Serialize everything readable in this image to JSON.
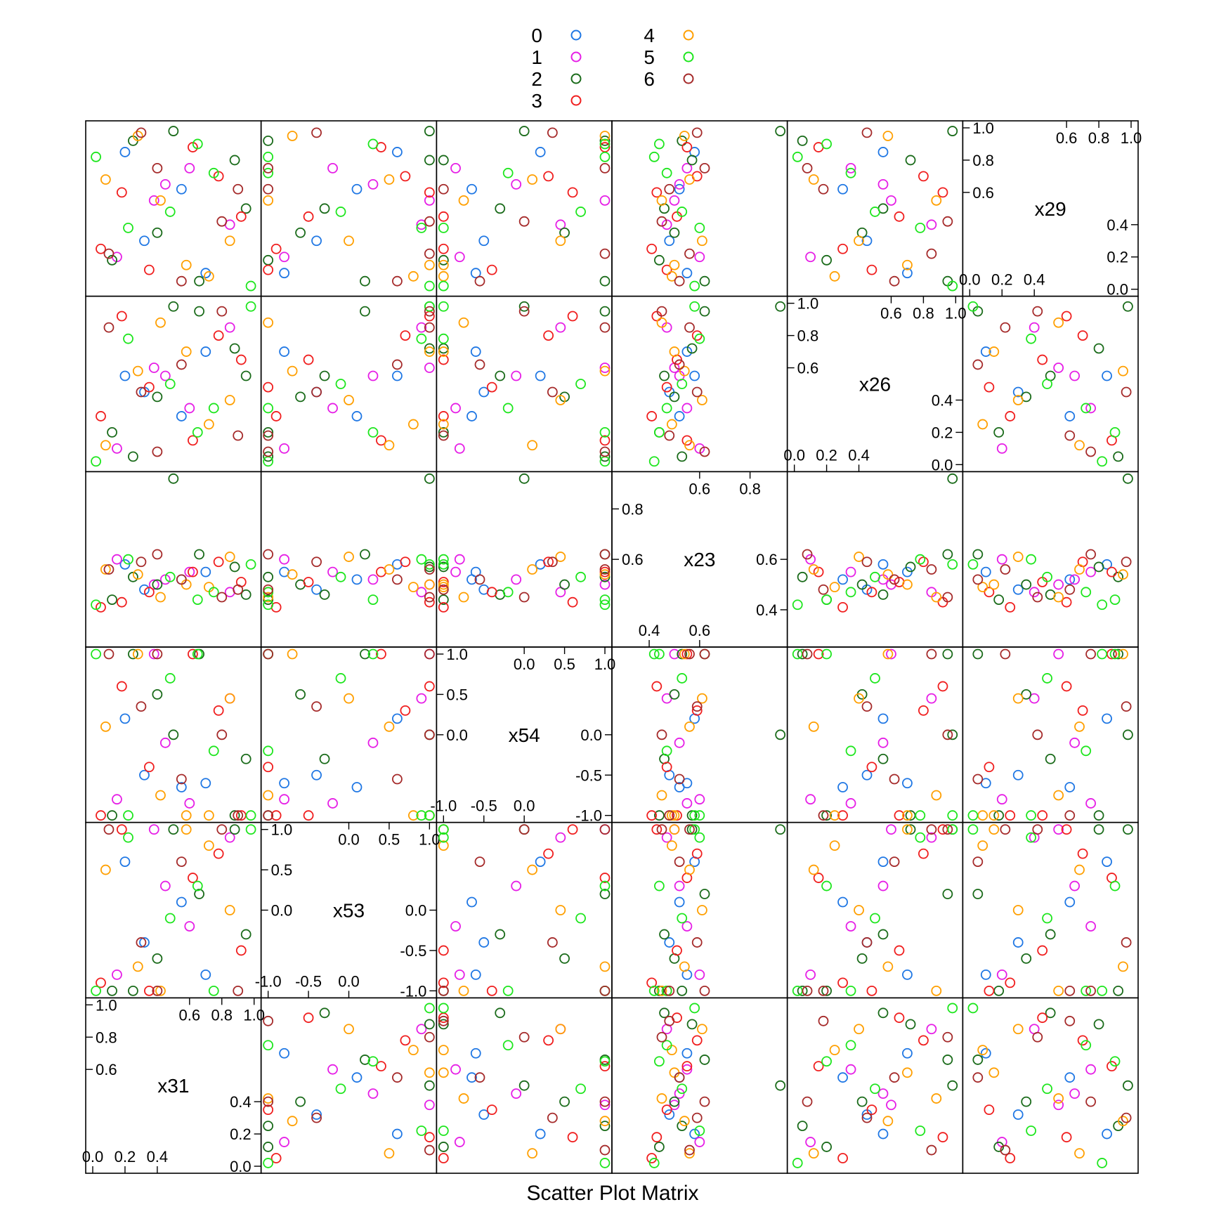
{
  "chart_data": {
    "type": "scatter",
    "subtype": "scatter-plot-matrix",
    "title": "",
    "xlabel": "Scatter Plot Matrix",
    "ylabel": "",
    "grid": false,
    "legend_placement": "top-center",
    "legend": {
      "columns": [
        [
          "0",
          "1",
          "2",
          "3"
        ],
        [
          "4",
          "5",
          "6"
        ]
      ],
      "entries": [
        {
          "label": "0",
          "color": "#1f77e4"
        },
        {
          "label": "1",
          "color": "#e61ee6"
        },
        {
          "label": "2",
          "color": "#1a6b1a"
        },
        {
          "label": "3",
          "color": "#f01e1e"
        },
        {
          "label": "4",
          "color": "#ff9f00"
        },
        {
          "label": "5",
          "color": "#1ee61e"
        },
        {
          "label": "6",
          "color": "#a52a2a"
        }
      ]
    },
    "variables": [
      {
        "name": "x31",
        "range": [
          0.0,
          1.0
        ],
        "lower_ticks": [
          "0.0",
          "0.2",
          "0.4"
        ],
        "upper_ticks": [
          "0.6",
          "0.8",
          "1.0"
        ],
        "lower_values": [
          0.0,
          0.2,
          0.4
        ],
        "upper_values": [
          0.6,
          0.8,
          1.0
        ]
      },
      {
        "name": "x53",
        "range": [
          -1.0,
          1.0
        ],
        "lower_ticks": [
          "-1.0",
          "-0.5",
          "0.0"
        ],
        "upper_ticks": [
          "0.0",
          "0.5",
          "1.0"
        ],
        "lower_values": [
          -1.0,
          -0.5,
          0.0
        ],
        "upper_values": [
          0.0,
          0.5,
          1.0
        ]
      },
      {
        "name": "x54",
        "range": [
          -1.0,
          1.0
        ],
        "lower_ticks": [
          "-1.0",
          "-0.5",
          "0.0"
        ],
        "upper_ticks": [
          "0.0",
          "0.5",
          "1.0"
        ],
        "lower_values": [
          -1.0,
          -0.5,
          0.0
        ],
        "upper_values": [
          0.0,
          0.5,
          1.0
        ]
      },
      {
        "name": "x23",
        "range": [
          0.28,
          0.92
        ],
        "lower_ticks": [
          "0.4",
          "0.6"
        ],
        "upper_ticks": [
          "0.6",
          "0.8"
        ],
        "lower_values": [
          0.4,
          0.6
        ],
        "upper_values": [
          0.6,
          0.8
        ]
      },
      {
        "name": "x26",
        "range": [
          0.0,
          1.0
        ],
        "lower_ticks": [
          "0.0",
          "0.2",
          "0.4"
        ],
        "upper_ticks": [
          "0.6",
          "0.8",
          "1.0"
        ],
        "lower_values": [
          0.0,
          0.2,
          0.4
        ],
        "upper_values": [
          0.6,
          0.8,
          1.0
        ]
      },
      {
        "name": "x29",
        "range": [
          0.0,
          1.0
        ],
        "lower_ticks": [
          "0.0",
          "0.2",
          "0.4"
        ],
        "upper_ticks": [
          "0.6",
          "0.8",
          "1.0"
        ],
        "lower_values": [
          0.0,
          0.2,
          0.4
        ],
        "upper_values": [
          0.6,
          0.8,
          1.0
        ]
      }
    ],
    "series": [
      {
        "label": "0",
        "points": [
          {
            "x31": 0.32,
            "x53": -0.4,
            "x54": -0.5,
            "x23": 0.48,
            "x26": 0.45,
            "x29": 0.3
          },
          {
            "x31": 0.55,
            "x53": 0.1,
            "x54": -0.65,
            "x23": 0.52,
            "x26": 0.3,
            "x29": 0.62
          },
          {
            "x31": 0.7,
            "x53": -0.8,
            "x54": -0.6,
            "x23": 0.55,
            "x26": 0.7,
            "x29": 0.1
          },
          {
            "x31": 0.2,
            "x53": 0.6,
            "x54": 0.2,
            "x23": 0.58,
            "x26": 0.55,
            "x29": 0.85
          }
        ]
      },
      {
        "label": "1",
        "points": [
          {
            "x31": 0.45,
            "x53": 0.3,
            "x54": -0.1,
            "x23": 0.52,
            "x26": 0.55,
            "x29": 0.65
          },
          {
            "x31": 0.15,
            "x53": -0.8,
            "x54": -0.8,
            "x23": 0.6,
            "x26": 0.1,
            "x29": 0.2
          },
          {
            "x31": 0.85,
            "x53": 0.9,
            "x54": 0.45,
            "x23": 0.47,
            "x26": 0.85,
            "x29": 0.4
          },
          {
            "x31": 0.6,
            "x53": -0.2,
            "x54": -0.85,
            "x23": 0.55,
            "x26": 0.35,
            "x29": 0.75
          },
          {
            "x31": 0.38,
            "x53": 1.0,
            "x54": 1.0,
            "x23": 0.5,
            "x26": 0.6,
            "x29": 0.55
          }
        ]
      },
      {
        "label": "2",
        "points": [
          {
            "x31": 0.12,
            "x53": -1.0,
            "x54": -1.0,
            "x23": 0.44,
            "x26": 0.2,
            "x29": 0.18
          },
          {
            "x31": 0.88,
            "x53": 1.0,
            "x54": -1.0,
            "x23": 0.57,
            "x26": 0.72,
            "x29": 0.8
          },
          {
            "x31": 0.4,
            "x53": -0.6,
            "x54": 0.5,
            "x23": 0.5,
            "x26": 0.42,
            "x29": 0.35
          },
          {
            "x31": 0.66,
            "x53": 0.2,
            "x54": 1.0,
            "x23": 0.62,
            "x26": 0.95,
            "x29": 0.05
          },
          {
            "x31": 0.25,
            "x53": -1.0,
            "x54": 1.0,
            "x23": 0.53,
            "x26": 0.05,
            "x29": 0.92
          },
          {
            "x31": 0.95,
            "x53": -0.3,
            "x54": -0.3,
            "x23": 0.46,
            "x26": 0.55,
            "x29": 0.5
          },
          {
            "x31": 0.5,
            "x53": 1.0,
            "x54": 0.0,
            "x23": 0.92,
            "x26": 0.98,
            "x29": 0.98
          }
        ]
      },
      {
        "label": "3",
        "points": [
          {
            "x31": 0.05,
            "x53": -0.9,
            "x54": -1.0,
            "x23": 0.41,
            "x26": 0.3,
            "x29": 0.25
          },
          {
            "x31": 0.78,
            "x53": 0.7,
            "x54": 0.3,
            "x23": 0.59,
            "x26": 0.8,
            "x29": 0.7
          },
          {
            "x31": 0.35,
            "x53": -1.0,
            "x54": -0.4,
            "x23": 0.47,
            "x26": 0.48,
            "x29": 0.12
          },
          {
            "x31": 0.62,
            "x53": 0.4,
            "x54": 1.0,
            "x23": 0.55,
            "x26": 0.15,
            "x29": 0.88
          },
          {
            "x31": 0.92,
            "x53": -0.5,
            "x54": -1.0,
            "x23": 0.51,
            "x26": 0.65,
            "x29": 0.45
          },
          {
            "x31": 0.18,
            "x53": 1.0,
            "x54": 0.6,
            "x23": 0.43,
            "x26": 0.92,
            "x29": 0.6
          }
        ]
      },
      {
        "label": "4",
        "points": [
          {
            "x31": 0.72,
            "x53": 0.8,
            "x54": -1.0,
            "x23": 0.49,
            "x26": 0.25,
            "x29": 0.08
          },
          {
            "x31": 0.28,
            "x53": -0.7,
            "x54": 1.0,
            "x23": 0.54,
            "x26": 0.58,
            "x29": 0.95
          },
          {
            "x31": 0.85,
            "x53": 0.0,
            "x54": 0.45,
            "x23": 0.61,
            "x26": 0.4,
            "x29": 0.3
          },
          {
            "x31": 0.42,
            "x53": -1.0,
            "x54": -0.75,
            "x23": 0.45,
            "x26": 0.88,
            "x29": 0.55
          },
          {
            "x31": 0.08,
            "x53": 0.5,
            "x54": 0.1,
            "x23": 0.56,
            "x26": 0.12,
            "x29": 0.68
          },
          {
            "x31": 0.58,
            "x53": 1.0,
            "x54": -1.0,
            "x23": 0.5,
            "x26": 0.7,
            "x29": 0.15
          }
        ]
      },
      {
        "label": "5",
        "points": [
          {
            "x31": 0.02,
            "x53": -1.0,
            "x54": 1.0,
            "x23": 0.42,
            "x26": 0.02,
            "x29": 0.82
          },
          {
            "x31": 0.98,
            "x53": 1.0,
            "x54": -1.0,
            "x23": 0.58,
            "x26": 0.98,
            "x29": 0.02
          },
          {
            "x31": 0.48,
            "x53": -0.1,
            "x54": 0.7,
            "x23": 0.53,
            "x26": 0.5,
            "x29": 0.48
          },
          {
            "x31": 0.75,
            "x53": -1.0,
            "x54": -0.2,
            "x23": 0.47,
            "x26": 0.35,
            "x29": 0.72
          },
          {
            "x31": 0.22,
            "x53": 0.9,
            "x54": -1.0,
            "x23": 0.6,
            "x26": 0.78,
            "x29": 0.38
          },
          {
            "x31": 0.65,
            "x53": 0.3,
            "x54": 1.0,
            "x23": 0.44,
            "x26": 0.2,
            "x29": 0.9
          }
        ]
      },
      {
        "label": "6",
        "points": [
          {
            "x31": 0.1,
            "x53": 1.0,
            "x54": 1.0,
            "x23": 0.56,
            "x26": 0.85,
            "x29": 0.22
          },
          {
            "x31": 0.9,
            "x53": -1.0,
            "x54": -1.0,
            "x23": 0.48,
            "x26": 0.18,
            "x29": 0.62
          },
          {
            "x31": 0.55,
            "x53": 0.6,
            "x54": -0.55,
            "x23": 0.52,
            "x26": 0.62,
            "x29": 0.05
          },
          {
            "x31": 0.3,
            "x53": -0.4,
            "x54": 0.35,
            "x23": 0.59,
            "x26": 0.45,
            "x29": 0.97
          },
          {
            "x31": 0.8,
            "x53": 1.0,
            "x54": 0.0,
            "x23": 0.45,
            "x26": 0.95,
            "x29": 0.42
          },
          {
            "x31": 0.4,
            "x53": -1.0,
            "x54": 1.0,
            "x23": 0.62,
            "x26": 0.08,
            "x29": 0.75
          }
        ]
      }
    ]
  }
}
